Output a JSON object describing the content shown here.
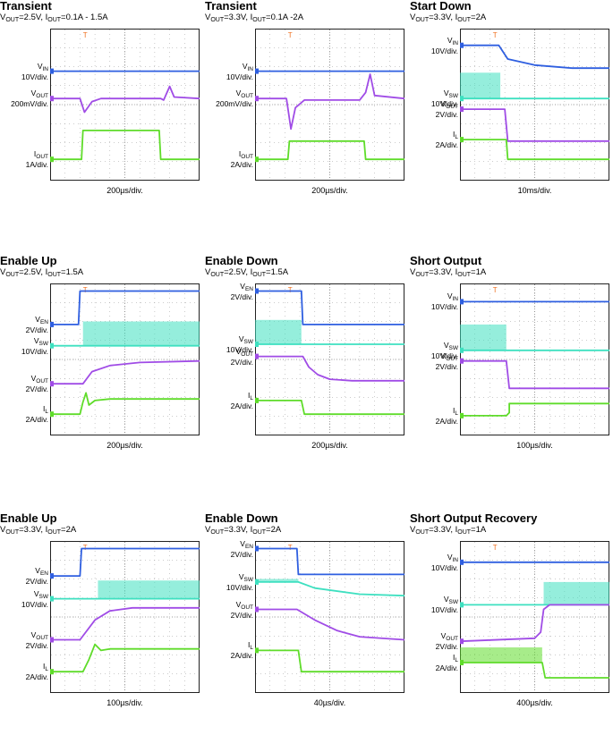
{
  "chart_data": [
    {
      "type": "line",
      "title": "Transient",
      "subtitle": [
        [
          "V",
          "OUT",
          "=2.5V, "
        ],
        [
          "I",
          "OUT",
          "=0.1A - 1.5A"
        ]
      ],
      "time_div": "200µs/div.",
      "channels": [
        {
          "label": "V",
          "sub": "IN",
          "scale": "10V/div.",
          "color": "#2f5fe0",
          "points": [
            [
              0,
              0.28
            ],
            [
              1,
              0.28
            ]
          ]
        },
        {
          "label": "V",
          "sub": "OUT",
          "scale": "200mV/div.",
          "color": "#a04ce6",
          "points": [
            [
              0,
              0.46
            ],
            [
              0.2,
              0.46
            ],
            [
              0.23,
              0.55
            ],
            [
              0.28,
              0.48
            ],
            [
              0.34,
              0.46
            ],
            [
              0.74,
              0.46
            ],
            [
              0.76,
              0.47
            ],
            [
              0.8,
              0.38
            ],
            [
              0.83,
              0.45
            ],
            [
              1,
              0.46
            ]
          ]
        },
        {
          "label": "I",
          "sub": "OUT",
          "scale": "1A/div.",
          "color": "#5fdc2a",
          "points": [
            [
              0,
              0.86
            ],
            [
              0.21,
              0.86
            ],
            [
              0.22,
              0.67
            ],
            [
              0.73,
              0.67
            ],
            [
              0.74,
              0.86
            ],
            [
              1,
              0.86
            ]
          ]
        }
      ]
    },
    {
      "type": "line",
      "title": "Transient",
      "subtitle": [
        [
          "V",
          "OUT",
          "=3.3V, "
        ],
        [
          "I",
          "OUT",
          "=0.1A -2A"
        ]
      ],
      "time_div": "200µs/div.",
      "channels": [
        {
          "label": "V",
          "sub": "IN",
          "scale": "10V/div.",
          "color": "#2f5fe0",
          "points": [
            [
              0,
              0.28
            ],
            [
              1,
              0.28
            ]
          ]
        },
        {
          "label": "V",
          "sub": "OUT",
          "scale": "200mV/div.",
          "color": "#a04ce6",
          "points": [
            [
              0,
              0.46
            ],
            [
              0.21,
              0.46
            ],
            [
              0.24,
              0.66
            ],
            [
              0.27,
              0.52
            ],
            [
              0.33,
              0.47
            ],
            [
              0.7,
              0.47
            ],
            [
              0.74,
              0.42
            ],
            [
              0.77,
              0.3
            ],
            [
              0.8,
              0.44
            ],
            [
              1,
              0.46
            ]
          ]
        },
        {
          "label": "I",
          "sub": "OUT",
          "scale": "2A/div.",
          "color": "#5fdc2a",
          "points": [
            [
              0,
              0.86
            ],
            [
              0.22,
              0.86
            ],
            [
              0.23,
              0.74
            ],
            [
              0.73,
              0.74
            ],
            [
              0.74,
              0.86
            ],
            [
              1,
              0.86
            ]
          ]
        }
      ]
    },
    {
      "type": "line",
      "title": "Start Down",
      "subtitle": [
        [
          "V",
          "OUT",
          "=3.3V, "
        ],
        [
          "I",
          "OUT",
          "=2A"
        ]
      ],
      "time_div": "10ms/div.",
      "channels": [
        {
          "label": "V",
          "sub": "IN",
          "scale": "10V/div.",
          "color": "#2f5fe0",
          "points": [
            [
              0,
              0.11
            ],
            [
              0.26,
              0.11
            ],
            [
              0.32,
              0.2
            ],
            [
              0.5,
              0.24
            ],
            [
              0.75,
              0.26
            ],
            [
              1,
              0.26
            ]
          ]
        },
        {
          "label": "V",
          "sub": "SW",
          "scale": "10V/div.",
          "color": "#3ee0c0",
          "band": [
            0,
            0.29,
            0.27,
            0.46
          ],
          "points": [
            [
              0,
              0.46
            ],
            [
              0.27,
              0.46
            ],
            [
              0.29,
              0.46
            ],
            [
              1,
              0.46
            ]
          ]
        },
        {
          "label": "V",
          "sub": "OUT",
          "scale": "2V/div.",
          "color": "#a04ce6",
          "points": [
            [
              0,
              0.53
            ],
            [
              0.3,
              0.53
            ],
            [
              0.32,
              0.74
            ],
            [
              1,
              0.74
            ]
          ]
        },
        {
          "label": "I",
          "sub": "L",
          "scale": "2A/div.",
          "color": "#5fdc2a",
          "points": [
            [
              0,
              0.73
            ],
            [
              0.31,
              0.73
            ],
            [
              0.32,
              0.86
            ],
            [
              1,
              0.86
            ]
          ]
        }
      ]
    },
    {
      "type": "line",
      "title": "Enable Up",
      "subtitle": [
        [
          "V",
          "OUT",
          "=2.5V, "
        ],
        [
          "I",
          "OUT",
          "=1.5A"
        ]
      ],
      "time_div": "200µs/div.",
      "channels": [
        {
          "label": "V",
          "sub": "EN",
          "scale": "2V/div.",
          "color": "#2f5fe0",
          "points": [
            [
              0,
              0.27
            ],
            [
              0.19,
              0.27
            ],
            [
              0.2,
              0.05
            ],
            [
              1,
              0.05
            ]
          ]
        },
        {
          "label": "V",
          "sub": "SW",
          "scale": "10V/div.",
          "color": "#3ee0c0",
          "band": [
            0.22,
            0.25,
            1,
            0.41
          ],
          "points": [
            [
              0,
              0.41
            ],
            [
              1,
              0.41
            ]
          ]
        },
        {
          "label": "V",
          "sub": "OUT",
          "scale": "2V/div.",
          "color": "#a04ce6",
          "points": [
            [
              0,
              0.66
            ],
            [
              0.22,
              0.66
            ],
            [
              0.28,
              0.58
            ],
            [
              0.4,
              0.54
            ],
            [
              0.6,
              0.52
            ],
            [
              1,
              0.51
            ]
          ]
        },
        {
          "label": "I",
          "sub": "L",
          "scale": "2A/div.",
          "color": "#5fdc2a",
          "points": [
            [
              0,
              0.86
            ],
            [
              0.2,
              0.86
            ],
            [
              0.22,
              0.78
            ],
            [
              0.24,
              0.72
            ],
            [
              0.26,
              0.8
            ],
            [
              0.3,
              0.77
            ],
            [
              0.4,
              0.76
            ],
            [
              1,
              0.76
            ]
          ]
        }
      ]
    },
    {
      "type": "line",
      "title": "Enable Down",
      "subtitle": [
        [
          "V",
          "OUT",
          "=2.5V, "
        ],
        [
          "I",
          "OUT",
          "=1.5A"
        ]
      ],
      "time_div": "200µs/div.",
      "channels": [
        {
          "label": "V",
          "sub": "EN",
          "scale": "2V/div.",
          "color": "#2f5fe0",
          "points": [
            [
              0,
              0.05
            ],
            [
              0.31,
              0.05
            ],
            [
              0.32,
              0.27
            ],
            [
              1,
              0.27
            ]
          ]
        },
        {
          "label": "V",
          "sub": "SW",
          "scale": "10V/div.",
          "color": "#3ee0c0",
          "band": [
            0,
            0.24,
            0.31,
            0.4
          ],
          "points": [
            [
              0,
              0.4
            ],
            [
              0.31,
              0.4
            ],
            [
              1,
              0.4
            ]
          ]
        },
        {
          "label": "V",
          "sub": "OUT",
          "scale": "2V/div.",
          "color": "#a04ce6",
          "points": [
            [
              0,
              0.48
            ],
            [
              0.32,
              0.48
            ],
            [
              0.36,
              0.55
            ],
            [
              0.42,
              0.6
            ],
            [
              0.5,
              0.63
            ],
            [
              0.65,
              0.64
            ],
            [
              1,
              0.64
            ]
          ]
        },
        {
          "label": "I",
          "sub": "L",
          "scale": "2A/div.",
          "color": "#5fdc2a",
          "points": [
            [
              0,
              0.77
            ],
            [
              0.31,
              0.77
            ],
            [
              0.33,
              0.86
            ],
            [
              1,
              0.86
            ]
          ]
        }
      ]
    },
    {
      "type": "line",
      "title": "Short Output",
      "subtitle": [
        [
          "V",
          "OUT",
          "=3.3V, "
        ],
        [
          "I",
          "OUT",
          "=1A"
        ]
      ],
      "time_div": "100µs/div.",
      "channels": [
        {
          "label": "V",
          "sub": "IN",
          "scale": "10V/div.",
          "color": "#2f5fe0",
          "points": [
            [
              0,
              0.12
            ],
            [
              1,
              0.12
            ]
          ]
        },
        {
          "label": "V",
          "sub": "SW",
          "scale": "10V/div.",
          "color": "#3ee0c0",
          "band": [
            0,
            0.27,
            0.31,
            0.44
          ],
          "points": [
            [
              0,
              0.44
            ],
            [
              1,
              0.44
            ]
          ]
        },
        {
          "label": "V",
          "sub": "OUT",
          "scale": "2V/div.",
          "color": "#a04ce6",
          "points": [
            [
              0,
              0.51
            ],
            [
              0.31,
              0.51
            ],
            [
              0.33,
              0.69
            ],
            [
              1,
              0.69
            ]
          ]
        },
        {
          "label": "I",
          "sub": "L",
          "scale": "2A/div.",
          "color": "#5fdc2a",
          "points": [
            [
              0,
              0.87
            ],
            [
              0.31,
              0.87
            ],
            [
              0.33,
              0.85
            ],
            [
              0.33,
              0.79
            ],
            [
              1,
              0.79
            ]
          ]
        }
      ]
    },
    {
      "type": "line",
      "title": "Enable Up",
      "subtitle": [
        [
          "V",
          "OUT",
          "=3.3V, "
        ],
        [
          "I",
          "OUT",
          "=2A"
        ]
      ],
      "time_div": "100µs/div.",
      "channels": [
        {
          "label": "V",
          "sub": "EN",
          "scale": "2V/div.",
          "color": "#2f5fe0",
          "points": [
            [
              0,
              0.23
            ],
            [
              0.2,
              0.23
            ],
            [
              0.21,
              0.05
            ],
            [
              1,
              0.05
            ]
          ]
        },
        {
          "label": "V",
          "sub": "SW",
          "scale": "10V/div.",
          "color": "#3ee0c0",
          "band": [
            0.32,
            0.26,
            1,
            0.38
          ],
          "points": [
            [
              0,
              0.38
            ],
            [
              1,
              0.38
            ]
          ]
        },
        {
          "label": "V",
          "sub": "OUT",
          "scale": "2V/div.",
          "color": "#a04ce6",
          "points": [
            [
              0,
              0.65
            ],
            [
              0.2,
              0.65
            ],
            [
              0.3,
              0.52
            ],
            [
              0.4,
              0.46
            ],
            [
              0.55,
              0.44
            ],
            [
              1,
              0.44
            ]
          ]
        },
        {
          "label": "I",
          "sub": "L",
          "scale": "2A/div.",
          "color": "#5fdc2a",
          "points": [
            [
              0,
              0.86
            ],
            [
              0.22,
              0.86
            ],
            [
              0.26,
              0.78
            ],
            [
              0.3,
              0.68
            ],
            [
              0.34,
              0.72
            ],
            [
              0.4,
              0.71
            ],
            [
              1,
              0.71
            ]
          ]
        }
      ]
    },
    {
      "type": "line",
      "title": "Enable Down",
      "subtitle": [
        [
          "V",
          "OUT",
          "=3.3V, "
        ],
        [
          "I",
          "OUT",
          "=2A"
        ]
      ],
      "time_div": "40µs/div.",
      "channels": [
        {
          "label": "V",
          "sub": "EN",
          "scale": "2V/div.",
          "color": "#2f5fe0",
          "points": [
            [
              0,
              0.05
            ],
            [
              0.28,
              0.05
            ],
            [
              0.29,
              0.22
            ],
            [
              1,
              0.22
            ]
          ]
        },
        {
          "label": "V",
          "sub": "SW",
          "scale": "10V/div.",
          "color": "#3ee0c0",
          "band": [
            0,
            0.25,
            0.29,
            0.27
          ],
          "points": [
            [
              0,
              0.27
            ],
            [
              0.29,
              0.27
            ],
            [
              0.4,
              0.31
            ],
            [
              0.7,
              0.35
            ],
            [
              1,
              0.36
            ]
          ]
        },
        {
          "label": "V",
          "sub": "OUT",
          "scale": "2V/div.",
          "color": "#a04ce6",
          "points": [
            [
              0,
              0.45
            ],
            [
              0.28,
              0.45
            ],
            [
              0.4,
              0.52
            ],
            [
              0.55,
              0.59
            ],
            [
              0.7,
              0.63
            ],
            [
              1,
              0.65
            ]
          ]
        },
        {
          "label": "I",
          "sub": "L",
          "scale": "2A/div.",
          "color": "#5fdc2a",
          "points": [
            [
              0,
              0.72
            ],
            [
              0.29,
              0.72
            ],
            [
              0.31,
              0.86
            ],
            [
              1,
              0.86
            ]
          ]
        }
      ]
    },
    {
      "type": "line",
      "title": "Short Output Recovery",
      "subtitle": [
        [
          "V",
          "OUT",
          "=3.3V, "
        ],
        [
          "I",
          "OUT",
          "=1A"
        ]
      ],
      "time_div": "400µs/div.",
      "channels": [
        {
          "label": "V",
          "sub": "IN",
          "scale": "10V/div.",
          "color": "#2f5fe0",
          "points": [
            [
              0,
              0.14
            ],
            [
              1,
              0.14
            ]
          ]
        },
        {
          "label": "V",
          "sub": "SW",
          "scale": "10V/div.",
          "color": "#3ee0c0",
          "band": [
            0.56,
            0.27,
            1,
            0.42
          ],
          "points": [
            [
              0,
              0.42
            ],
            [
              1,
              0.42
            ]
          ]
        },
        {
          "label": "V",
          "sub": "OUT",
          "scale": "2V/div.",
          "color": "#a04ce6",
          "points": [
            [
              0,
              0.66
            ],
            [
              0.5,
              0.64
            ],
            [
              0.54,
              0.6
            ],
            [
              0.56,
              0.45
            ],
            [
              0.6,
              0.42
            ],
            [
              1,
              0.42
            ]
          ]
        },
        {
          "label": "I",
          "sub": "L",
          "scale": "2A/div.",
          "color": "#5fdc2a",
          "band": [
            0,
            0.7,
            0.55,
            0.8
          ],
          "points": [
            [
              0,
              0.8
            ],
            [
              0.55,
              0.8
            ],
            [
              0.57,
              0.9
            ],
            [
              1,
              0.9
            ]
          ]
        }
      ]
    }
  ]
}
